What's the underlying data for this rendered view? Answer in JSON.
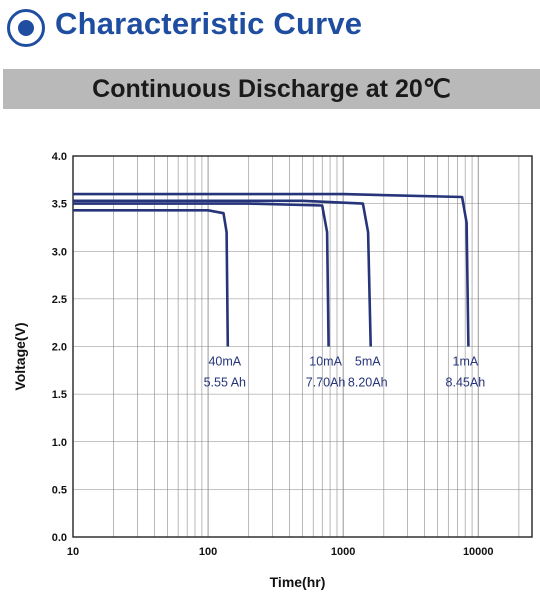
{
  "page": {
    "title": "Characteristic Curve",
    "subtitle": "Continuous Discharge at 20℃",
    "title_color": "#1f4ea0",
    "subtitle_bar_color": "#b9b9b9",
    "title_icon": "target-circle-icon"
  },
  "chart_data": {
    "type": "line",
    "title": "",
    "xlabel": "Time(hr)",
    "ylabel": "Voltage(V)",
    "xscale": "log",
    "xlim": [
      10,
      25000
    ],
    "ylim": [
      0,
      4.0
    ],
    "xticks": [
      "10",
      "100",
      "1000",
      "10000"
    ],
    "yticks": [
      "0.0",
      "0.5",
      "1.0",
      "1.5",
      "2.0",
      "2.5",
      "3.0",
      "3.5",
      "4.0"
    ],
    "grid": true,
    "line_color": "#26347a",
    "series": [
      {
        "name": "40mA",
        "capacity": "5.55 Ah",
        "x": [
          10,
          100,
          130,
          137,
          140
        ],
        "y": [
          3.43,
          3.43,
          3.4,
          3.2,
          2.0
        ]
      },
      {
        "name": "10mA",
        "capacity": "7.70Ah",
        "x": [
          10,
          200,
          700,
          760,
          780
        ],
        "y": [
          3.5,
          3.5,
          3.48,
          3.2,
          2.0
        ]
      },
      {
        "name": "5mA",
        "capacity": "8.20Ah",
        "x": [
          10,
          500,
          1400,
          1530,
          1600
        ],
        "y": [
          3.53,
          3.53,
          3.5,
          3.2,
          2.0
        ]
      },
      {
        "name": "1mA",
        "capacity": "8.45Ah",
        "x": [
          10,
          1000,
          7600,
          8200,
          8450
        ],
        "y": [
          3.6,
          3.6,
          3.57,
          3.3,
          2.0
        ]
      }
    ]
  }
}
